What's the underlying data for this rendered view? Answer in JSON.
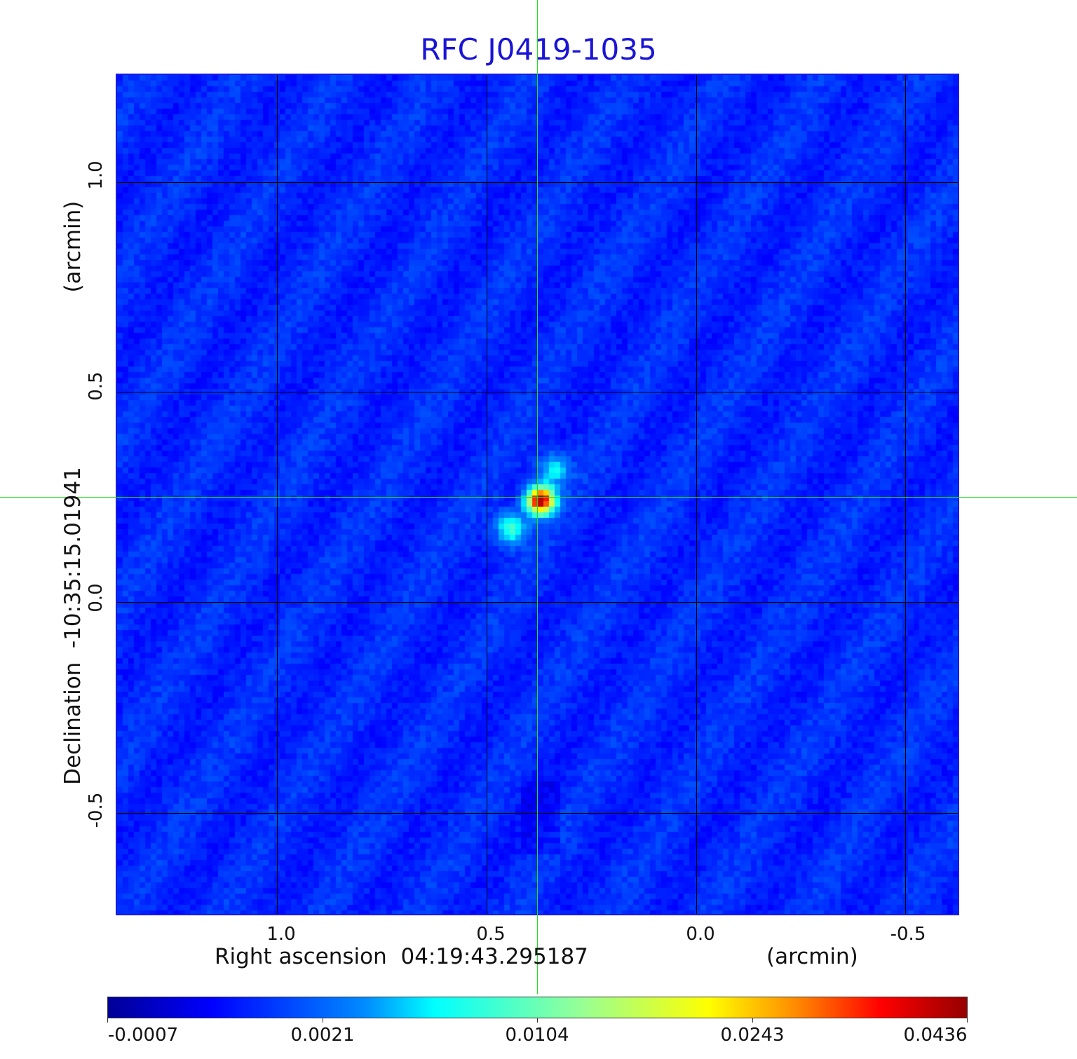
{
  "title": "RFC J0419-1035",
  "x_axis": {
    "label": "Right ascension  04:19:43.295187",
    "unit": "(arcmin)",
    "ticks": [
      "1.0",
      "0.5",
      "0.0",
      "-0.5"
    ]
  },
  "y_axis": {
    "label": "Declination  -10:35:15.01941",
    "unit": "(arcmin)",
    "ticks": [
      "1.0",
      "0.5",
      "0.0",
      "-0.5"
    ]
  },
  "colorbar": {
    "ticks": [
      "-0.0007",
      "0.0021",
      "0.0104",
      "0.0243",
      "0.0436"
    ],
    "colormap": "jet"
  },
  "colors": {
    "title": "#1a14d4",
    "crosshair": "#22dd22",
    "map_background": "#1a44f0"
  }
}
